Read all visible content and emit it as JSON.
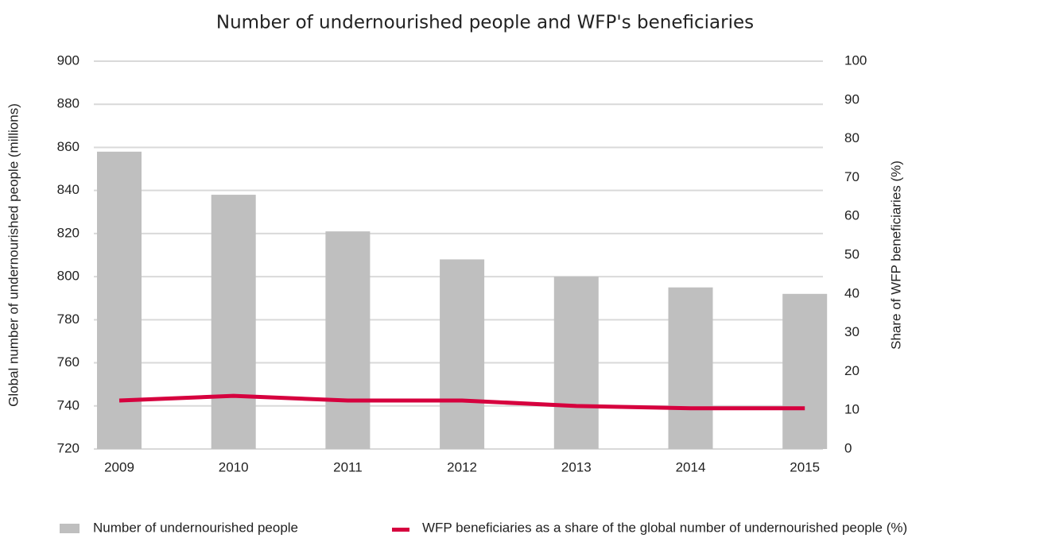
{
  "chart_data": {
    "type": "bar",
    "title": "Number of undernourished people and WFP's beneficiaries",
    "y_label": "Global number of undernourished people (millions)",
    "y2_label": "Share of WFP beneficiaries (%)",
    "categories": [
      "2009",
      "2010",
      "2011",
      "2012",
      "2013",
      "2014",
      "2015"
    ],
    "series": [
      {
        "name": "Number of undernourished people",
        "type": "bar",
        "color": "#bfbfbf",
        "values": [
          858,
          838,
          821,
          808,
          800,
          795,
          792
        ]
      },
      {
        "name": "WFP beneficiaries as a share of the global number of undernourished people (%)",
        "type": "line",
        "axis": "y2",
        "color": "#d6003e",
        "values": [
          12.5,
          13.7,
          12.5,
          12.5,
          11.1,
          10.5,
          10.5
        ]
      }
    ],
    "ylim": [
      720,
      900
    ],
    "yticks": [
      720,
      740,
      760,
      780,
      800,
      820,
      840,
      860,
      880,
      900
    ],
    "y2lim": [
      0,
      100
    ],
    "y2ticks": [
      0,
      10,
      20,
      30,
      40,
      50,
      60,
      70,
      80,
      90,
      100
    ],
    "grid": true,
    "legend": "bottom"
  }
}
